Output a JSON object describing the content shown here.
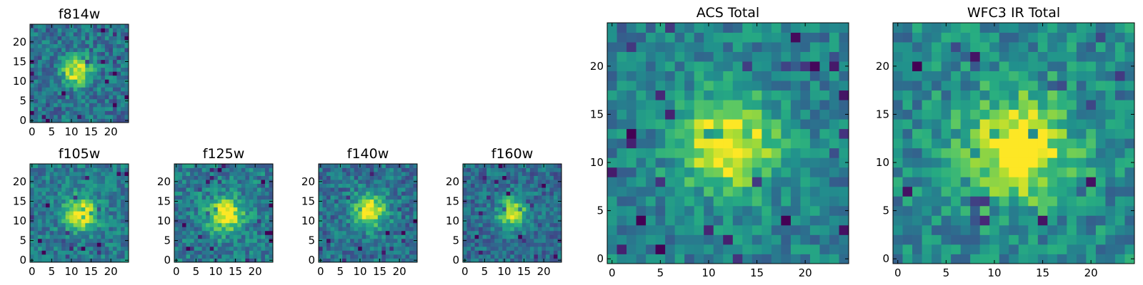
{
  "figure": {
    "kind": "multi-panel heatmap",
    "colormap": "viridis"
  },
  "chart_data": [
    {
      "type": "heatmap",
      "title": "f814w",
      "grid_size": [
        25,
        25
      ],
      "xlim": [
        -0.5,
        24.5
      ],
      "ylim": [
        -0.5,
        24.5
      ],
      "xticks": [
        0,
        5,
        10,
        15,
        20
      ],
      "yticks": [
        0,
        5,
        10,
        15,
        20
      ],
      "peak_center": [
        11.5,
        12.5
      ],
      "peak_width": 2.6,
      "background": 0.38,
      "noise": 0.18
    },
    {
      "type": "heatmap",
      "title": "f105w",
      "grid_size": [
        25,
        25
      ],
      "xlim": [
        -0.5,
        24.5
      ],
      "ylim": [
        -0.5,
        24.5
      ],
      "xticks": [
        0,
        5,
        10,
        15,
        20
      ],
      "yticks": [
        0,
        5,
        10,
        15,
        20
      ],
      "peak_center": [
        12.5,
        12.0
      ],
      "peak_width": 2.8,
      "background": 0.42,
      "noise": 0.16
    },
    {
      "type": "heatmap",
      "title": "f125w",
      "grid_size": [
        25,
        25
      ],
      "xlim": [
        -0.5,
        24.5
      ],
      "ylim": [
        -0.5,
        24.5
      ],
      "xticks": [
        0,
        5,
        10,
        15,
        20
      ],
      "yticks": [
        0,
        5,
        10,
        15,
        20
      ],
      "peak_center": [
        12.5,
        11.5
      ],
      "peak_width": 3.0,
      "background": 0.42,
      "noise": 0.18
    },
    {
      "type": "heatmap",
      "title": "f140w",
      "grid_size": [
        25,
        25
      ],
      "xlim": [
        -0.5,
        24.5
      ],
      "ylim": [
        -0.5,
        24.5
      ],
      "xticks": [
        0,
        5,
        10,
        15,
        20
      ],
      "yticks": [
        0,
        5,
        10,
        15,
        20
      ],
      "peak_center": [
        12.5,
        12.5
      ],
      "peak_width": 3.0,
      "background": 0.38,
      "noise": 0.17
    },
    {
      "type": "heatmap",
      "title": "f160w",
      "grid_size": [
        25,
        25
      ],
      "xlim": [
        -0.5,
        24.5
      ],
      "ylim": [
        -0.5,
        24.5
      ],
      "xticks": [
        0,
        5,
        10,
        15,
        20
      ],
      "yticks": [
        0,
        5,
        10,
        15,
        20
      ],
      "peak_center": [
        12.0,
        12.0
      ],
      "peak_width": 2.6,
      "background": 0.36,
      "noise": 0.16
    },
    {
      "type": "heatmap",
      "title": "ACS Total",
      "grid_size": [
        25,
        25
      ],
      "xlim": [
        -0.5,
        24.5
      ],
      "ylim": [
        -0.5,
        24.5
      ],
      "xticks": [
        0,
        5,
        10,
        15,
        20
      ],
      "yticks": [
        0,
        5,
        10,
        15,
        20
      ],
      "peak_center": [
        12.0,
        12.0
      ],
      "peak_width": 3.4,
      "background": 0.45,
      "noise": 0.16
    },
    {
      "type": "heatmap",
      "title": "WFC3 IR Total",
      "grid_size": [
        25,
        25
      ],
      "xlim": [
        -0.5,
        24.5
      ],
      "ylim": [
        -0.5,
        24.5
      ],
      "xticks": [
        0,
        5,
        10,
        15,
        20
      ],
      "yticks": [
        0,
        5,
        10,
        15,
        20
      ],
      "peak_center": [
        12.5,
        11.5
      ],
      "peak_width": 3.6,
      "background": 0.48,
      "noise": 0.18
    }
  ]
}
